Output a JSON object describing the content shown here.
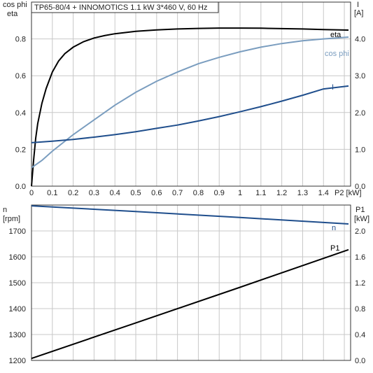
{
  "chart_data": [
    {
      "type": "line",
      "title": "TP65-80/4 + INNOMOTICS   1.1 kW   3*460 V, 60 Hz",
      "xlabel": "P2 [kW]",
      "x_ticks": [
        "0",
        "0.1",
        "0.2",
        "0.3",
        "0.4",
        "0.5",
        "0.6",
        "0.7",
        "0.8",
        "0.9",
        "1",
        "1.1",
        "1.2",
        "1.3",
        "1.4",
        "P2 [kW]"
      ],
      "xlim": [
        0,
        1.53
      ],
      "ylabel_left": [
        "cos phi",
        "eta"
      ],
      "ylim_left": [
        0,
        1.0
      ],
      "y_ticks_left": [
        "0.0",
        "0.2",
        "0.4",
        "0.6",
        "0.8"
      ],
      "ylabel_right": [
        "I",
        "[A]"
      ],
      "ylim_right": [
        0,
        5.0
      ],
      "y_ticks_right": [
        "0.0",
        "1.0",
        "2.0",
        "3.0",
        "4.0"
      ],
      "grid": true,
      "series": [
        {
          "name": "eta",
          "axis": "left",
          "color": "#000000",
          "x": [
            0,
            0.01,
            0.02,
            0.03,
            0.05,
            0.07,
            0.1,
            0.13,
            0.16,
            0.2,
            0.25,
            0.3,
            0.35,
            0.4,
            0.5,
            0.6,
            0.7,
            0.8,
            0.9,
            1.0,
            1.1,
            1.2,
            1.3,
            1.4,
            1.52
          ],
          "y": [
            0,
            0.14,
            0.26,
            0.34,
            0.45,
            0.53,
            0.62,
            0.68,
            0.72,
            0.755,
            0.785,
            0.805,
            0.818,
            0.828,
            0.841,
            0.849,
            0.854,
            0.857,
            0.859,
            0.859,
            0.858,
            0.856,
            0.854,
            0.851,
            0.848
          ]
        },
        {
          "name": "cos phi",
          "axis": "left",
          "color": "#7a9dbf",
          "x": [
            0,
            0.05,
            0.1,
            0.2,
            0.3,
            0.4,
            0.5,
            0.6,
            0.7,
            0.8,
            0.9,
            1.0,
            1.1,
            1.2,
            1.3,
            1.4,
            1.52
          ],
          "y": [
            0.1,
            0.14,
            0.19,
            0.28,
            0.36,
            0.44,
            0.51,
            0.57,
            0.62,
            0.665,
            0.7,
            0.73,
            0.755,
            0.775,
            0.79,
            0.8,
            0.81
          ]
        },
        {
          "name": "I",
          "axis": "right",
          "color": "#1f4e8c",
          "x": [
            0,
            0.1,
            0.2,
            0.3,
            0.4,
            0.5,
            0.6,
            0.7,
            0.8,
            0.9,
            1.0,
            1.1,
            1.2,
            1.3,
            1.4,
            1.52
          ],
          "y": [
            1.18,
            1.22,
            1.27,
            1.33,
            1.4,
            1.48,
            1.57,
            1.66,
            1.77,
            1.89,
            2.02,
            2.16,
            2.31,
            2.47,
            2.64,
            2.72
          ]
        }
      ]
    },
    {
      "type": "line",
      "x_ticks": [],
      "xlim": [
        0,
        1.53
      ],
      "ylabel_left": [
        "n",
        "[rpm]"
      ],
      "ylim_left": [
        1200,
        1800
      ],
      "y_ticks_left": [
        "1200",
        "1300",
        "1400",
        "1500",
        "1600",
        "1700"
      ],
      "ylabel_right": [
        "P1",
        "[kW]"
      ],
      "ylim_right": [
        0,
        2.4
      ],
      "y_ticks_right": [
        "0.0",
        "0.4",
        "0.8",
        "1.2",
        "1.6",
        "2.0"
      ],
      "grid": true,
      "series": [
        {
          "name": "n",
          "axis": "left",
          "color": "#1f4e8c",
          "x": [
            0,
            0.5,
            1.0,
            1.52
          ],
          "y": [
            1797,
            1775,
            1752,
            1727
          ]
        },
        {
          "name": "P1",
          "axis": "right",
          "color": "#000000",
          "x": [
            0,
            0.5,
            1.0,
            1.52
          ],
          "y": [
            0.03,
            0.58,
            1.13,
            1.71
          ]
        }
      ]
    }
  ]
}
